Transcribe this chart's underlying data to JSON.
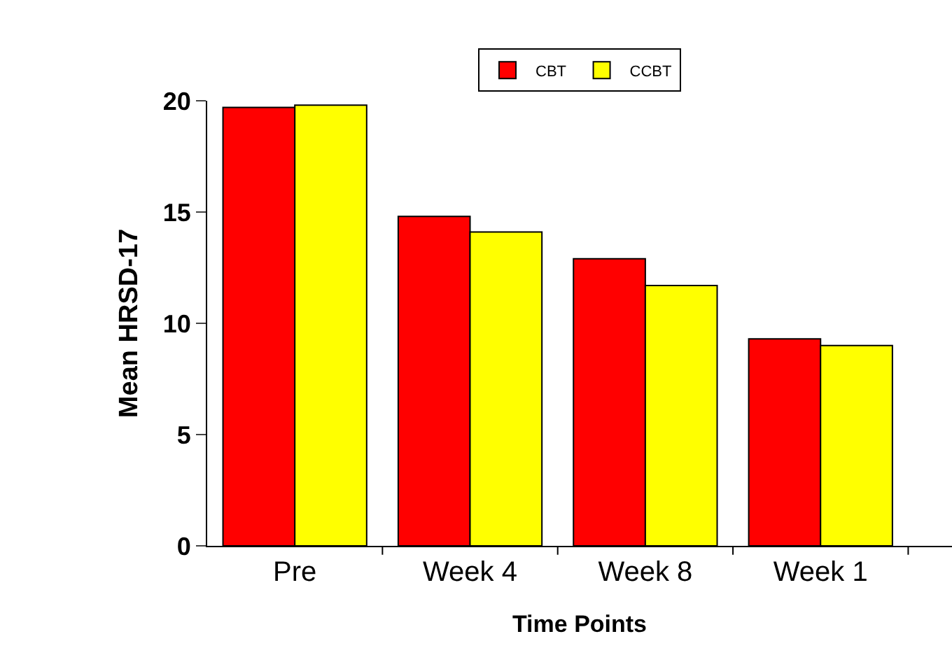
{
  "chart_data": {
    "type": "bar",
    "xlabel": "Time Points",
    "ylabel": "Mean HRSD-17",
    "categories": [
      "Pre",
      "Week 4",
      "Week 8",
      "Week 1"
    ],
    "series": [
      {
        "name": "CBT",
        "color": "#ff0000",
        "values": [
          19.7,
          14.8,
          12.9,
          9.3
        ]
      },
      {
        "name": "CCBT",
        "color": "#ffff00",
        "values": [
          19.8,
          14.1,
          11.7,
          9.0
        ]
      }
    ],
    "ylim": [
      0,
      20
    ],
    "yticks": [
      0,
      5,
      10,
      15,
      20
    ],
    "grid": false,
    "legend": "top"
  }
}
